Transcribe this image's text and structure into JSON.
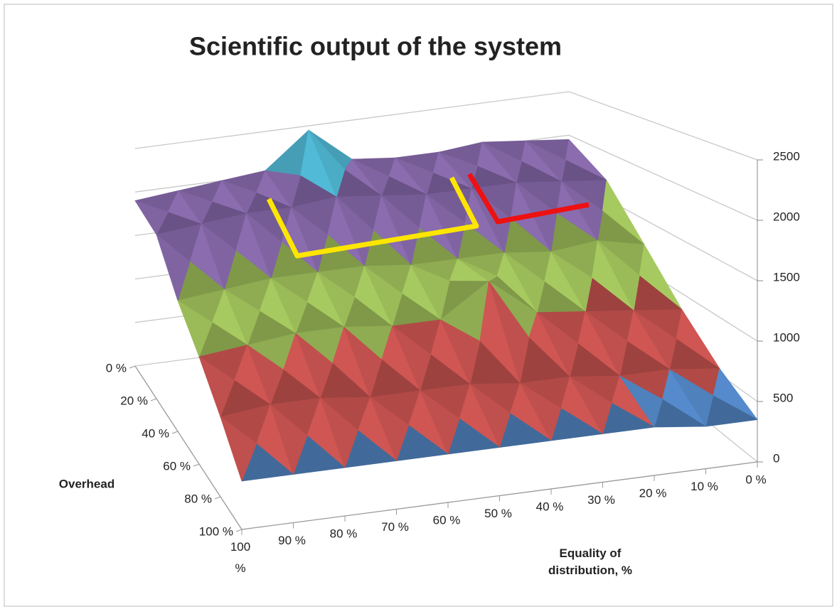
{
  "chart_data": {
    "type": "surface3d",
    "title": "Scientific output of the system",
    "x_label": "Equality of distribution, %",
    "y_label": "Overhead",
    "x_categories": [
      "100 %",
      "90 %",
      "80 %",
      "70 %",
      "60 %",
      "50 %",
      "40 %",
      "30 %",
      "20 %",
      "10 %",
      "0 %"
    ],
    "y_categories": [
      "0 %",
      "20 %",
      "40 %",
      "60 %",
      "80 %",
      "100 %"
    ],
    "values": [
      [
        1900,
        1950,
        2000,
        2050,
        2450,
        2050,
        2000,
        2000,
        2050,
        2000,
        1950
      ],
      [
        1750,
        1800,
        1850,
        1850,
        1900,
        1850,
        1800,
        1800,
        1800,
        1750,
        1700
      ],
      [
        1300,
        1350,
        1400,
        1400,
        1400,
        1350,
        1350,
        1350,
        1300,
        1350,
        1250
      ],
      [
        1000,
        1050,
        1100,
        1100,
        1050,
        1050,
        1350,
        1000,
        950,
        900,
        850
      ],
      [
        700,
        750,
        750,
        700,
        700,
        700,
        650,
        650,
        600,
        600,
        550
      ],
      [
        400,
        400,
        400,
        400,
        400,
        400,
        400,
        400,
        400,
        350,
        350
      ]
    ],
    "zlim": [
      0,
      2500
    ],
    "zticks": [
      0,
      500,
      1000,
      1500,
      2000,
      2500
    ],
    "band_colors": [
      "#4f81bd",
      "#c0504d",
      "#9bbb59",
      "#8064a2",
      "#4bacc6"
    ],
    "grid": true
  }
}
